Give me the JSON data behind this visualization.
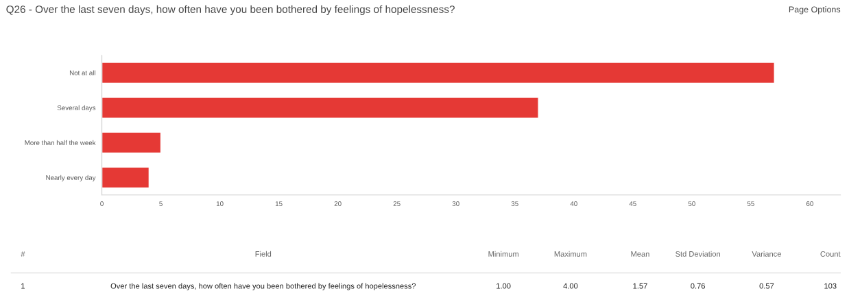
{
  "chart_data": {
    "type": "bar",
    "orientation": "horizontal",
    "title": "Q26 - Over the last seven days, how often have you been bothered by feelings of hopelessness?",
    "categories": [
      "Not at all",
      "Several days",
      "More than half the week",
      "Nearly every day"
    ],
    "values": [
      57,
      37,
      5,
      4
    ],
    "color": "#e53935",
    "xlim": [
      0,
      62.6
    ],
    "xticks": [
      0,
      5,
      10,
      15,
      20,
      25,
      30,
      35,
      40,
      45,
      50,
      55,
      60
    ],
    "grid": false,
    "annotations": [
      "Page Options",
      "#",
      "Field",
      "Minimum",
      "Maximum",
      "Mean",
      "Std Deviation",
      "Variance",
      "Count",
      "1",
      "Over the last seven days, how often have you been bothered by feelings of hopelessness?",
      "1.00",
      "4.00",
      "1.57",
      "0.76",
      "0.57",
      "103"
    ]
  }
}
